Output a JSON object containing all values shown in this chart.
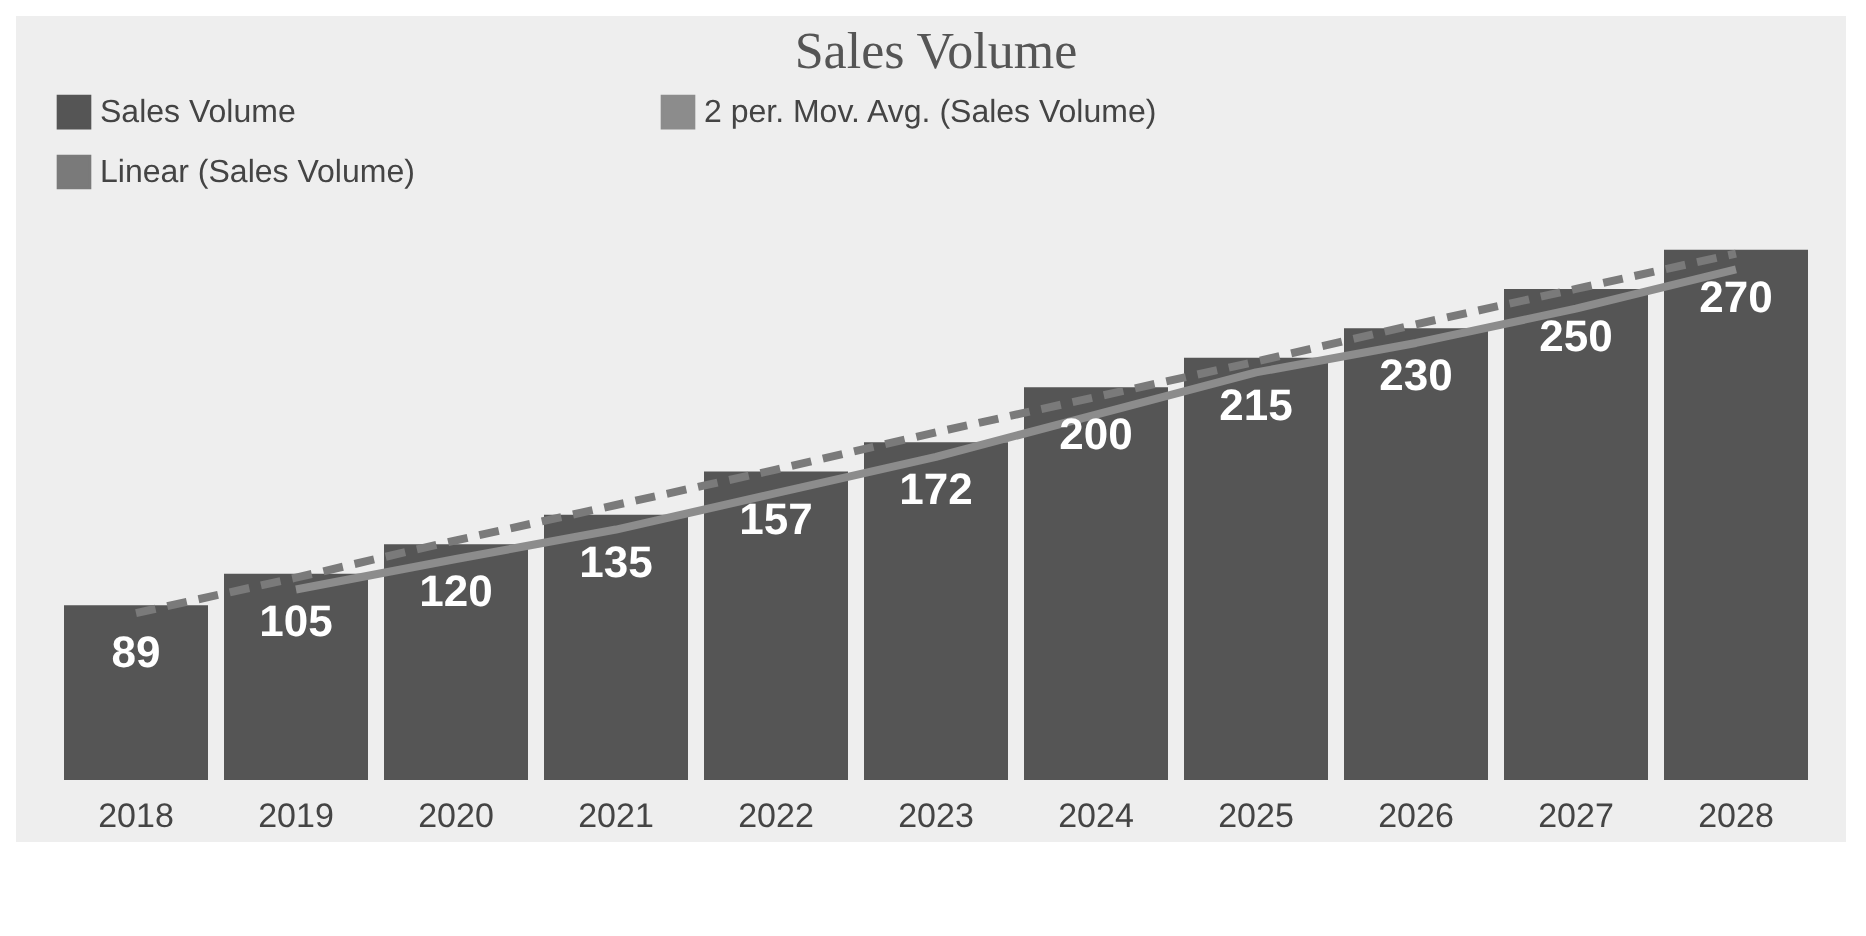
{
  "chart_data": {
    "type": "bar",
    "title": "Sales Volume",
    "categories": [
      "2018",
      "2019",
      "2020",
      "2021",
      "2022",
      "2023",
      "2024",
      "2025",
      "2026",
      "2027",
      "2028"
    ],
    "series": [
      {
        "name": "Sales Volume",
        "color": "#555555",
        "values": [
          89,
          105,
          120,
          135,
          157,
          172,
          200,
          215,
          230,
          250,
          270
        ],
        "value_labels": [
          "89",
          "105",
          "120",
          "135",
          "157",
          "172",
          "200",
          "215",
          "230",
          "250",
          "270"
        ]
      },
      {
        "name": "2 per. Mov. Avg. (Sales Volume)",
        "type": "line",
        "color": "#8c8c8c",
        "line_style": "solid",
        "values": [
          null,
          97,
          112.5,
          127.5,
          146,
          164.5,
          186,
          207.5,
          222.5,
          240,
          260
        ]
      },
      {
        "name": "Linear (Sales Volume)",
        "type": "line",
        "color": "#7a7a7a",
        "line_style": "dashed",
        "values": [
          85,
          103,
          122,
          140,
          158,
          177,
          195,
          213,
          232,
          250,
          268
        ]
      }
    ],
    "legend": "top"
  }
}
